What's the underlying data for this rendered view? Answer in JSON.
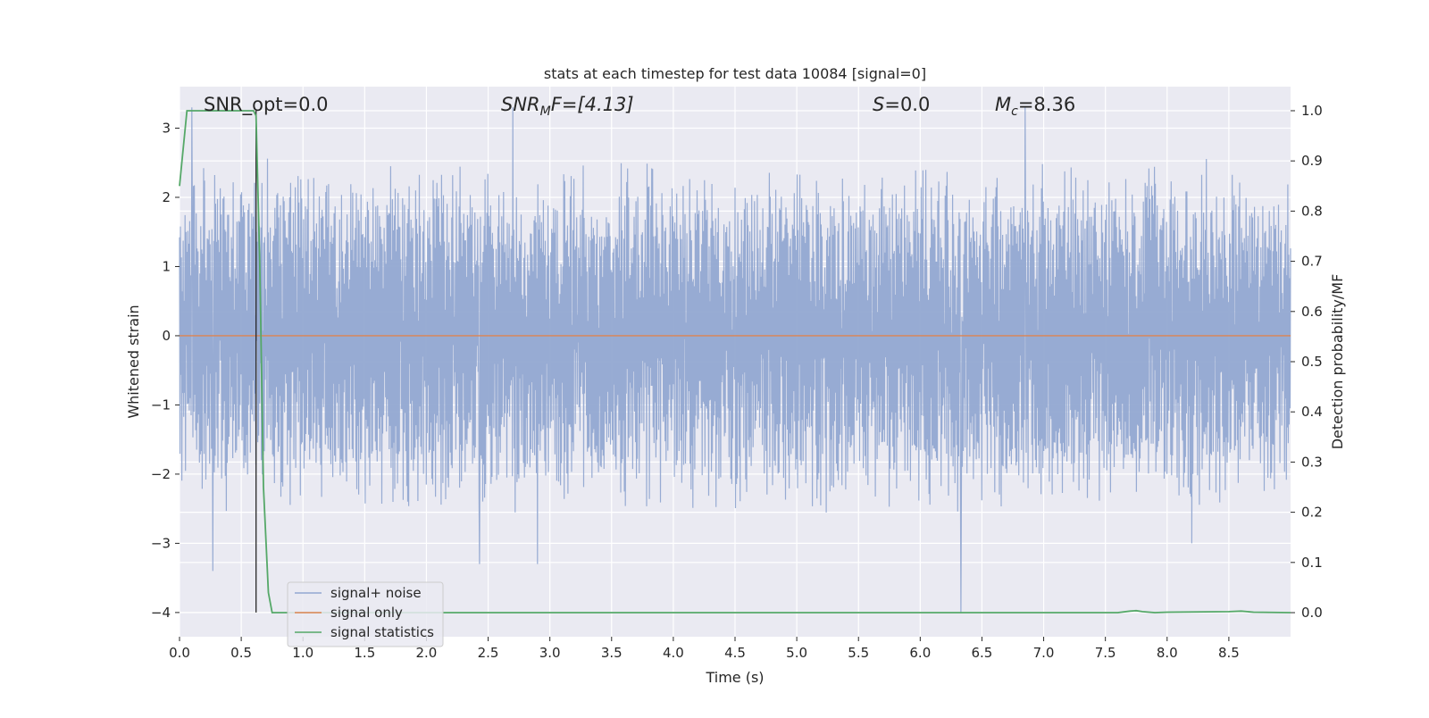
{
  "chart_data": {
    "type": "line",
    "title": "stats at each timestep for test data 10084 [signal=0]",
    "xlabel": "Time (s)",
    "ylabel": "Whitened strain",
    "ylabel_right": "Detection probability/MF",
    "xlim": [
      0.0,
      9.0
    ],
    "ylim": [
      -4.35,
      3.6
    ],
    "ylim_right": [
      -0.048,
      1.048
    ],
    "x_ticks": [
      0.0,
      0.5,
      1.0,
      1.5,
      2.0,
      2.5,
      3.0,
      3.5,
      4.0,
      4.5,
      5.0,
      5.5,
      6.0,
      6.5,
      7.0,
      7.5,
      8.0,
      8.5
    ],
    "x_tick_labels": [
      "0.0",
      "0.5",
      "1.0",
      "1.5",
      "2.0",
      "2.5",
      "3.0",
      "3.5",
      "4.0",
      "4.5",
      "5.0",
      "5.5",
      "6.0",
      "6.5",
      "7.0",
      "7.5",
      "8.0",
      "8.5"
    ],
    "y_ticks": [
      -4,
      -3,
      -2,
      -1,
      0,
      1,
      2,
      3
    ],
    "y_tick_labels": [
      "−4",
      "−3",
      "−2",
      "−1",
      "0",
      "1",
      "2",
      "3"
    ],
    "y_right_ticks": [
      0.0,
      0.1,
      0.2,
      0.3,
      0.4,
      0.5,
      0.6,
      0.7,
      0.8,
      0.9,
      1.0
    ],
    "y_right_tick_labels": [
      "0.0",
      "0.1",
      "0.2",
      "0.3",
      "0.4",
      "0.5",
      "0.6",
      "0.7",
      "0.8",
      "0.9",
      "1.0"
    ],
    "annotations": {
      "snr_opt": "SNR_opt=0.0",
      "snr_mf_base": "SNR",
      "snr_mf_sub": "M",
      "snr_mf_rest": "F=[4.13]",
      "s_symbol": "S",
      "s_rest": "=0.0",
      "mc_base": "M",
      "mc_sub": "c",
      "mc_rest": "=8.36"
    },
    "peak_marker_x": 0.62,
    "series": [
      {
        "name": "signal+ noise",
        "color": "#92a8d1",
        "axis": "left",
        "description_values": {
          "envelope_upper": [
            1.6,
            2.6
          ],
          "envelope_lower": [
            -1.6,
            -2.6
          ],
          "notable_peaks": [
            {
              "x": 0.1,
              "y": 3.3
            },
            {
              "x": 2.7,
              "y": 3.3
            },
            {
              "x": 6.85,
              "y": 3.3
            },
            {
              "x": 0.27,
              "y": -3.4
            },
            {
              "x": 2.43,
              "y": -3.3
            },
            {
              "x": 2.9,
              "y": -3.3
            },
            {
              "x": 6.33,
              "y": -4.0
            },
            {
              "x": 8.2,
              "y": -3.0
            }
          ]
        }
      },
      {
        "name": "signal only",
        "color": "#dd8452",
        "axis": "left",
        "x": [
          0.0,
          9.0
        ],
        "y": [
          0.0,
          0.0
        ]
      },
      {
        "name": "signal statistics",
        "color": "#55a868",
        "axis": "right",
        "x": [
          0.0,
          0.06,
          0.1,
          0.2,
          0.3,
          0.4,
          0.5,
          0.55,
          0.6,
          0.62,
          0.65,
          0.68,
          0.72,
          0.75,
          0.8,
          1.0,
          2.0,
          3.0,
          4.0,
          5.0,
          6.0,
          7.0,
          7.6,
          7.7,
          7.75,
          7.8,
          7.9,
          8.0,
          8.5,
          8.6,
          8.7,
          9.0
        ],
        "y": [
          0.85,
          1.0,
          1.0,
          1.0,
          1.0,
          1.0,
          1.0,
          1.0,
          1.0,
          0.99,
          0.7,
          0.25,
          0.04,
          0.0,
          0.0,
          0.0,
          0.0,
          0.0,
          0.0,
          0.0,
          0.0,
          0.0,
          0.0,
          0.003,
          0.004,
          0.002,
          0.0,
          0.001,
          0.002,
          0.003,
          0.001,
          0.0
        ]
      }
    ],
    "legend_position": "lower-left",
    "grid": true
  }
}
